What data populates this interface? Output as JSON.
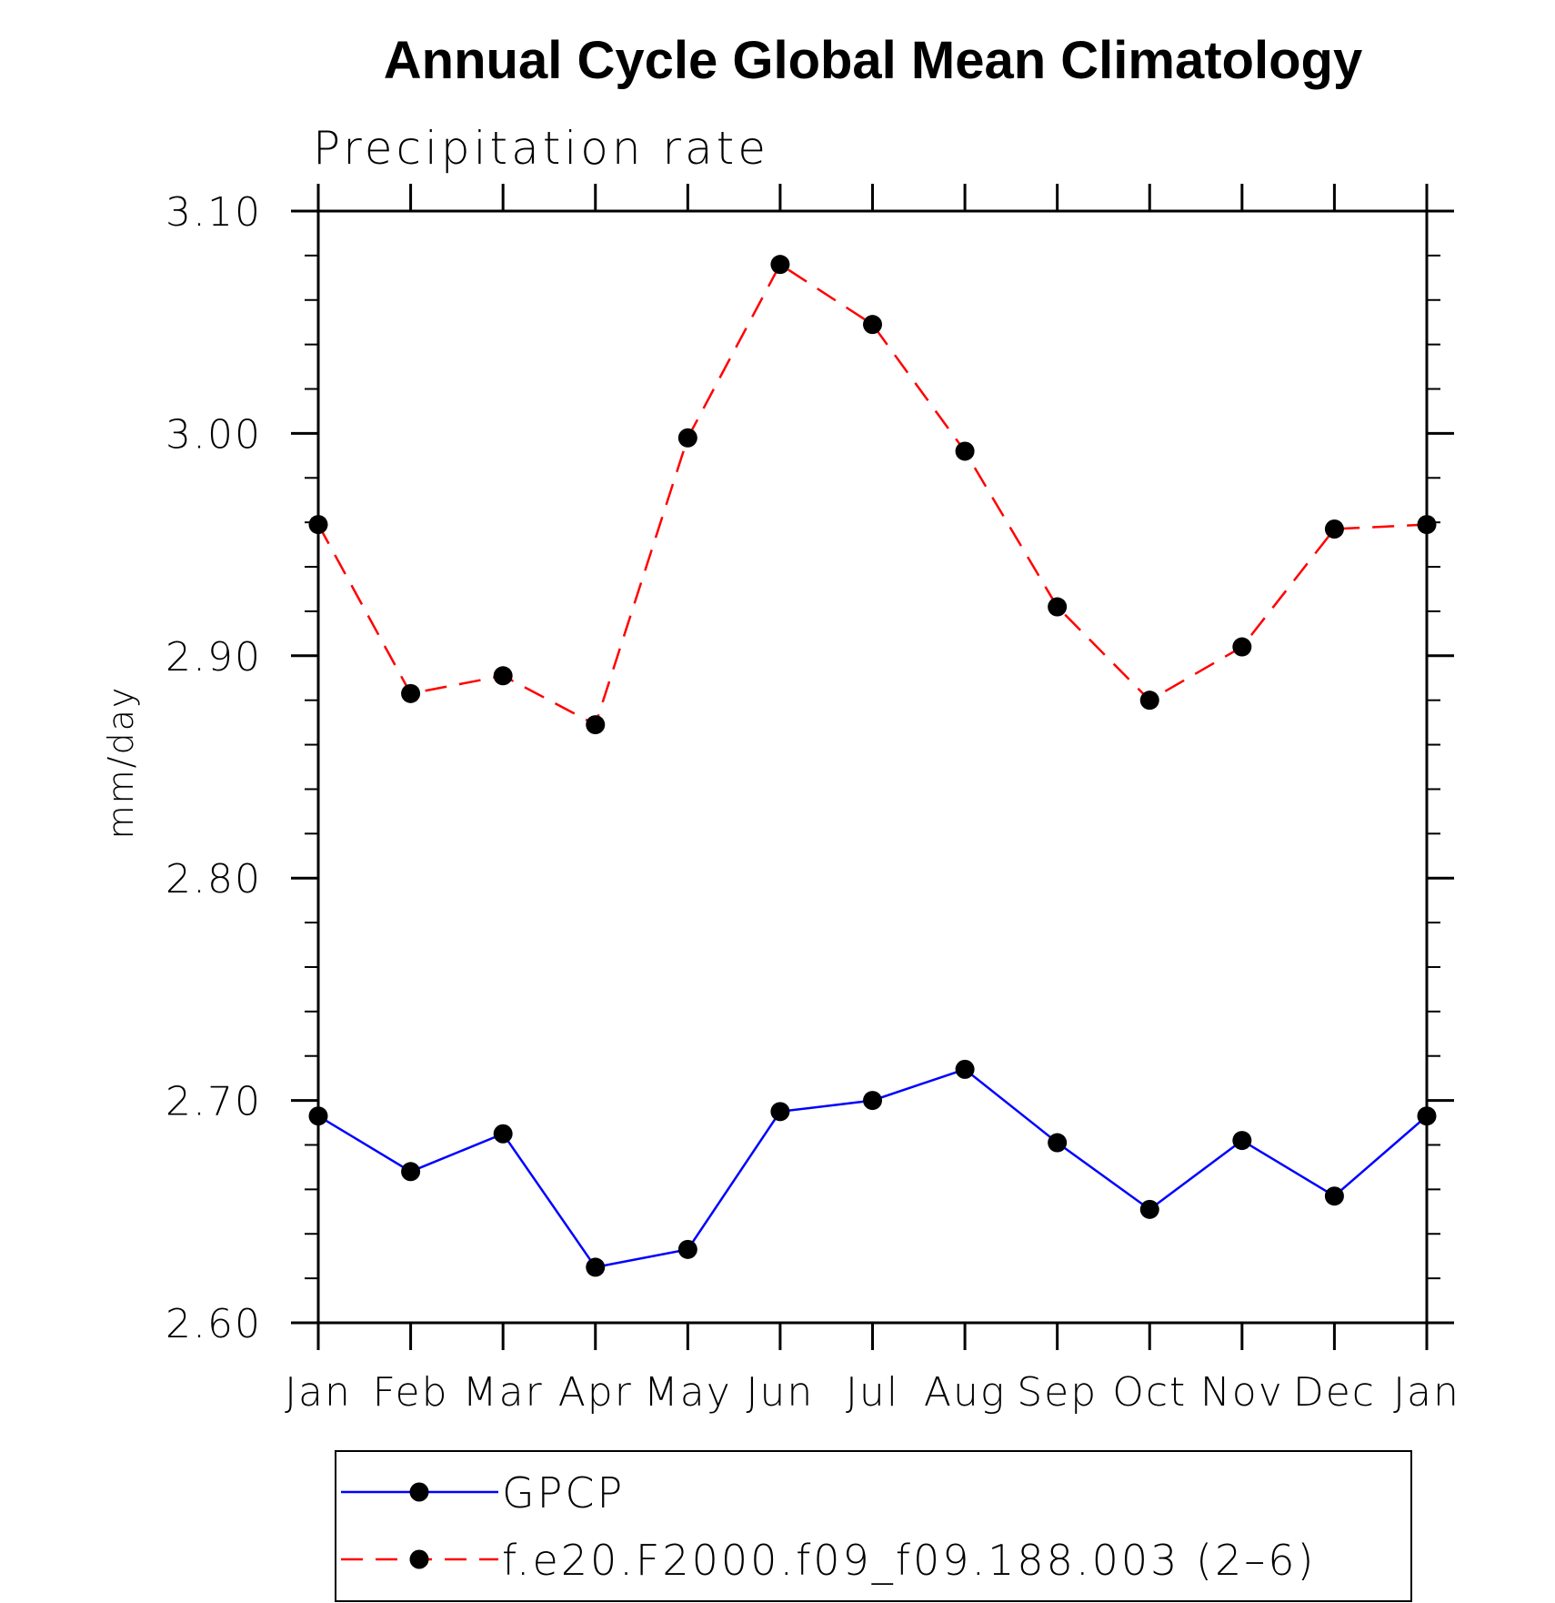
{
  "chart_data": {
    "type": "line",
    "title": "Annual Cycle Global Mean Climatology",
    "subtitle": "Precipitation rate",
    "ylabel": "mm/day",
    "xlabel": "",
    "categories": [
      "Jan",
      "Feb",
      "Mar",
      "Apr",
      "May",
      "Jun",
      "Jul",
      "Aug",
      "Sep",
      "Oct",
      "Nov",
      "Dec",
      "Jan"
    ],
    "ylim": [
      2.6,
      3.1
    ],
    "yticks": [
      "2.60",
      "2.70",
      "2.80",
      "2.90",
      "3.00",
      "3.10"
    ],
    "legend_position": "bottom",
    "grid": false,
    "series": [
      {
        "name": "GPCP",
        "color": "#0000ff",
        "line_style": "solid",
        "marker": "filled-circle",
        "values": [
          2.693,
          2.668,
          2.685,
          2.625,
          2.633,
          2.695,
          2.7,
          2.714,
          2.681,
          2.651,
          2.682,
          2.657,
          2.693
        ]
      },
      {
        "name": "f.e20.F2000.f09_f09.188.003 (2–6)",
        "color": "#ff0000",
        "line_style": "dashed",
        "marker": "filled-circle",
        "values": [
          2.959,
          2.883,
          2.891,
          2.869,
          2.998,
          3.076,
          3.049,
          2.992,
          2.922,
          2.88,
          2.904,
          2.957,
          2.959
        ]
      }
    ]
  }
}
